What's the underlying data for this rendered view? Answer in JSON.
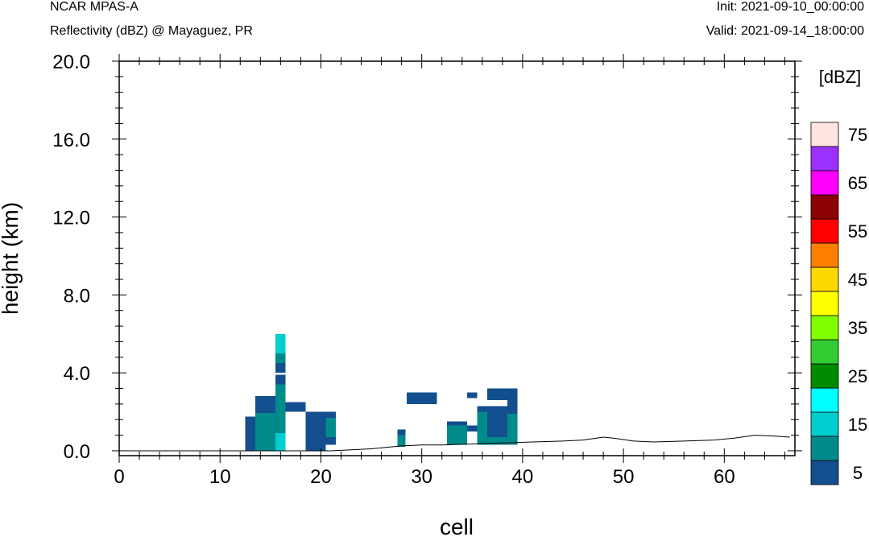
{
  "header": {
    "left_line1": "NCAR MPAS-A",
    "left_line2": "Reflectivity (dBZ) @ Mayaguez, PR",
    "right_line1": "Init: 2021-09-10_00:00:00",
    "right_line2": "Valid: 2021-09-14_18:00:00"
  },
  "chart_data": {
    "type": "heatmap",
    "title": "Reflectivity (dBZ) @ Mayaguez, PR",
    "xlabel": "cell",
    "ylabel": "height (km)",
    "xlim": [
      0,
      67
    ],
    "ylim": [
      -0.25,
      20.0
    ],
    "x_ticks": [
      "0",
      "10",
      "20",
      "30",
      "40",
      "50",
      "60"
    ],
    "y_ticks": [
      "0.0",
      "4.0",
      "8.0",
      "12.0",
      "16.0",
      "20.0"
    ],
    "colorbar": {
      "title": "[dBZ]",
      "levels": [
        5,
        10,
        15,
        20,
        25,
        30,
        35,
        40,
        45,
        50,
        55,
        60,
        65,
        70,
        75
      ],
      "colors": [
        "#134f8e",
        "#008b8b",
        "#00cdcd",
        "#00ffff",
        "#008b00",
        "#32cd32",
        "#7fff00",
        "#ffff00",
        "#ffd700",
        "#ff7f00",
        "#ff0000",
        "#8b0000",
        "#ff00ff",
        "#9b30ff",
        "#ffe4e1"
      ],
      "labels": [
        "5",
        "15",
        "25",
        "35",
        "45",
        "55",
        "65",
        "75"
      ]
    },
    "cells": [
      {
        "x0": 12.5,
        "x1": 13.5,
        "y0": 0.0,
        "y1": 1.75,
        "dbz": 5
      },
      {
        "x0": 13.5,
        "x1": 15.5,
        "y0": 1.95,
        "y1": 2.8,
        "dbz": 5
      },
      {
        "x0": 13.5,
        "x1": 15.5,
        "y0": 0.0,
        "y1": 1.95,
        "dbz": 10
      },
      {
        "x0": 15.5,
        "x1": 16.5,
        "y0": 5.0,
        "y1": 6.0,
        "dbz": 15
      },
      {
        "x0": 15.5,
        "x1": 16.5,
        "y0": 4.5,
        "y1": 5.0,
        "dbz": 10
      },
      {
        "x0": 15.5,
        "x1": 16.5,
        "y0": 4.0,
        "y1": 4.5,
        "dbz": 5
      },
      {
        "x0": 15.5,
        "x1": 16.5,
        "y0": 3.4,
        "y1": 3.9,
        "dbz": 5
      },
      {
        "x0": 15.5,
        "x1": 16.5,
        "y0": 2.0,
        "y1": 3.4,
        "dbz": 10
      },
      {
        "x0": 15.5,
        "x1": 16.5,
        "y0": 0.9,
        "y1": 2.0,
        "dbz": 10
      },
      {
        "x0": 15.5,
        "x1": 16.5,
        "y0": 0.0,
        "y1": 0.9,
        "dbz": 15
      },
      {
        "x0": 16.5,
        "x1": 18.5,
        "y0": 2.0,
        "y1": 2.5,
        "dbz": 5
      },
      {
        "x0": 18.5,
        "x1": 20.5,
        "y0": 0.0,
        "y1": 2.0,
        "dbz": 5
      },
      {
        "x0": 20.5,
        "x1": 21.5,
        "y0": 1.7,
        "y1": 2.0,
        "dbz": 5
      },
      {
        "x0": 20.5,
        "x1": 21.5,
        "y0": 0.7,
        "y1": 1.7,
        "dbz": 10
      },
      {
        "x0": 20.5,
        "x1": 21.5,
        "y0": 0.3,
        "y1": 0.7,
        "dbz": 5
      },
      {
        "x0": 27.6,
        "x1": 28.4,
        "y0": 0.8,
        "y1": 1.1,
        "dbz": 5
      },
      {
        "x0": 27.6,
        "x1": 28.4,
        "y0": 0.2,
        "y1": 0.8,
        "dbz": 10
      },
      {
        "x0": 28.5,
        "x1": 31.5,
        "y0": 2.4,
        "y1": 3.0,
        "dbz": 5
      },
      {
        "x0": 32.5,
        "x1": 34.5,
        "y0": 1.3,
        "y1": 1.5,
        "dbz": 5
      },
      {
        "x0": 32.5,
        "x1": 34.5,
        "y0": 0.3,
        "y1": 1.3,
        "dbz": 10
      },
      {
        "x0": 34.5,
        "x1": 35.5,
        "y0": 1.0,
        "y1": 1.3,
        "dbz": 5
      },
      {
        "x0": 34.5,
        "x1": 35.5,
        "y0": 2.7,
        "y1": 3.0,
        "dbz": 5
      },
      {
        "x0": 35.5,
        "x1": 36.5,
        "y0": 2.0,
        "y1": 2.3,
        "dbz": 5
      },
      {
        "x0": 35.5,
        "x1": 36.5,
        "y0": 0.3,
        "y1": 2.0,
        "dbz": 10
      },
      {
        "x0": 36.5,
        "x1": 38.5,
        "y0": 2.6,
        "y1": 3.2,
        "dbz": 5
      },
      {
        "x0": 36.5,
        "x1": 38.5,
        "y0": 0.7,
        "y1": 2.3,
        "dbz": 5
      },
      {
        "x0": 36.5,
        "x1": 38.5,
        "y0": 0.3,
        "y1": 0.7,
        "dbz": 10
      },
      {
        "x0": 38.5,
        "x1": 39.5,
        "y0": 1.9,
        "y1": 3.2,
        "dbz": 5
      },
      {
        "x0": 38.5,
        "x1": 39.5,
        "y0": 0.3,
        "y1": 1.9,
        "dbz": 10
      }
    ],
    "terrain": [
      [
        0.5,
        0.0
      ],
      [
        21.0,
        0.0
      ],
      [
        23.0,
        0.05
      ],
      [
        25.0,
        0.1
      ],
      [
        28.0,
        0.25
      ],
      [
        30.0,
        0.3
      ],
      [
        32.0,
        0.3
      ],
      [
        35.0,
        0.35
      ],
      [
        38.0,
        0.4
      ],
      [
        41.0,
        0.45
      ],
      [
        44.0,
        0.5
      ],
      [
        46.0,
        0.55
      ],
      [
        48.0,
        0.7
      ],
      [
        49.0,
        0.65
      ],
      [
        51.0,
        0.5
      ],
      [
        53.0,
        0.45
      ],
      [
        56.0,
        0.5
      ],
      [
        59.0,
        0.55
      ],
      [
        61.0,
        0.65
      ],
      [
        63.0,
        0.8
      ],
      [
        65.0,
        0.75
      ],
      [
        66.5,
        0.7
      ]
    ]
  }
}
